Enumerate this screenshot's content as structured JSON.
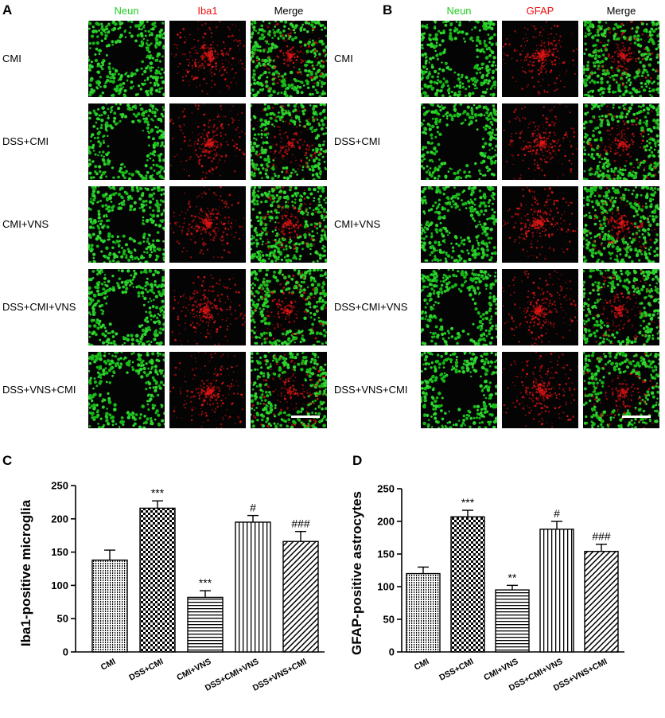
{
  "panelA": {
    "letter": "A",
    "columns": [
      {
        "label": "Neun",
        "color": "#22cc22"
      },
      {
        "label": "Iba1",
        "color": "#ee1111"
      },
      {
        "label": "Merge",
        "color": "#000000"
      }
    ],
    "rows": [
      "CMI",
      "DSS+CMI",
      "CMI+VNS",
      "DSS+CMI+VNS",
      "DSS+VNS+CMI"
    ]
  },
  "panelB": {
    "letter": "B",
    "columns": [
      {
        "label": "Neun",
        "color": "#22cc22"
      },
      {
        "label": "GFAP",
        "color": "#ee1111"
      },
      {
        "label": "Merge",
        "color": "#000000"
      }
    ],
    "rows": [
      "CMI",
      "DSS+CMI",
      "CMI+VNS",
      "DSS+CMI+VNS",
      "DSS+VNS+CMI"
    ]
  },
  "chart_data": [
    {
      "panel": "C",
      "type": "bar",
      "title": "",
      "xlabel": "",
      "ylabel": "Iba1-positive microglia",
      "ylim": [
        0,
        250
      ],
      "yticks": [
        0,
        50,
        100,
        150,
        200,
        250
      ],
      "categories": [
        "CMI",
        "DSS+CMI",
        "CMI+VNS",
        "DSS+CMI+VNS",
        "DSS+VNS+CMI"
      ],
      "values": [
        138,
        216,
        82,
        195,
        166
      ],
      "errors": [
        15,
        11,
        10,
        10,
        15
      ],
      "significance": [
        "",
        "***",
        "***",
        "#",
        "###"
      ],
      "patterns": [
        "vdots",
        "checker",
        "hlines",
        "vlines",
        "diag"
      ],
      "grid": false,
      "legend": "none"
    },
    {
      "panel": "D",
      "type": "bar",
      "title": "",
      "xlabel": "",
      "ylabel": "GFAP-positive astrocytes",
      "ylim": [
        0,
        250
      ],
      "yticks": [
        0,
        50,
        100,
        150,
        200,
        250
      ],
      "categories": [
        "CMI",
        "DSS+CMI",
        "CMI+VNS",
        "DSS+CMI+VNS",
        "DSS+VNS+CMI"
      ],
      "values": [
        120,
        207,
        95,
        188,
        154
      ],
      "errors": [
        10,
        10,
        7,
        12,
        11
      ],
      "significance": [
        "",
        "***",
        "**",
        "#",
        "###"
      ],
      "patterns": [
        "vdots",
        "checker",
        "hlines",
        "vlines",
        "diag"
      ],
      "grid": false,
      "legend": "none"
    }
  ]
}
